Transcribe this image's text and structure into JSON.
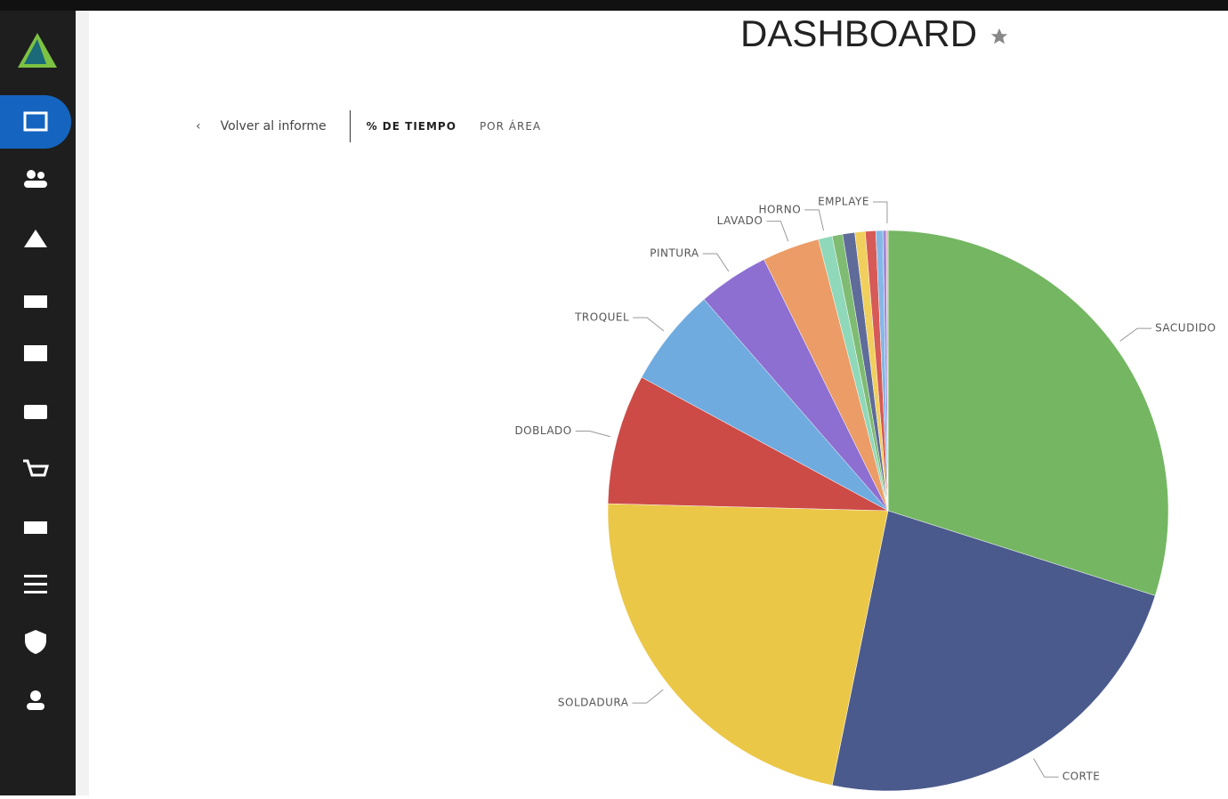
{
  "header": {
    "title": "DASHBOARD"
  },
  "nav": {
    "back": "Volver al informe",
    "tabs": [
      "% DE TIEMPO",
      "POR ÁREA"
    ]
  },
  "chart_data": {
    "type": "pie",
    "categories": [
      "SACUDIDO",
      "CORTE",
      "SOLDADURA",
      "DOBLADO",
      "TROQUEL",
      "PINTURA",
      "LAVADO",
      "HORNO",
      null,
      null,
      null,
      null,
      null,
      null,
      "EMPLAYE"
    ],
    "values": [
      29.9,
      23.3,
      22.2,
      7.5,
      5.7,
      4.1,
      3.3,
      0.8,
      0.6,
      0.7,
      0.6,
      0.6,
      0.4,
      0.2,
      0.1
    ],
    "colors": [
      "#74b662",
      "#4b5a8c",
      "#ebc747",
      "#cc4b47",
      "#6fabdf",
      "#8d6fd1",
      "#ec9c66",
      "#8fd8b9",
      "#7fbb72",
      "#5f6b99",
      "#f1cf5c",
      "#d65a56",
      "#85b8e6",
      "#a089d8",
      "#f0a0b0"
    ]
  }
}
